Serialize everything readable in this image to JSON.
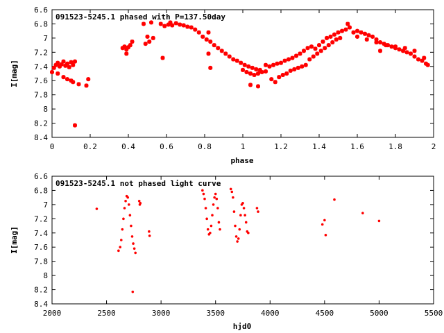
{
  "chart_data": [
    {
      "type": "scatter",
      "title": "091523-5245.1 phased with P=137.50day",
      "xlabel": "phase",
      "ylabel": "I[mag]",
      "xlim": [
        0,
        2
      ],
      "ylim": [
        6.6,
        8.4
      ],
      "y_inverted": true,
      "x_ticks": [
        "0",
        "0.2",
        "0.4",
        "0.6",
        "0.8",
        "1",
        "1.2",
        "1.4",
        "1.6",
        "1.8",
        "2"
      ],
      "y_ticks": [
        "6.6",
        "6.8",
        "7",
        "7.2",
        "7.4",
        "7.6",
        "7.8",
        "8",
        "8.2",
        "8.4"
      ],
      "marker_color": "#ff0000",
      "marker": "star",
      "series": [
        {
          "points": [
            [
              0.01,
              7.42
            ],
            [
              0.02,
              7.38
            ],
            [
              0.03,
              7.35
            ],
            [
              0.04,
              7.4
            ],
            [
              0.05,
              7.37
            ],
            [
              0.06,
              7.33
            ],
            [
              0.07,
              7.39
            ],
            [
              0.08,
              7.36
            ],
            [
              0.09,
              7.41
            ],
            [
              0.1,
              7.34
            ],
            [
              0.11,
              7.38
            ],
            [
              0.12,
              7.33
            ],
            [
              0.0,
              7.48
            ],
            [
              0.03,
              7.5
            ],
            [
              0.06,
              7.55
            ],
            [
              0.08,
              7.58
            ],
            [
              0.1,
              7.6
            ],
            [
              0.11,
              7.62
            ],
            [
              0.14,
              7.65
            ],
            [
              0.18,
              7.67
            ],
            [
              0.19,
              7.58
            ],
            [
              0.12,
              8.23
            ],
            [
              0.37,
              7.14
            ],
            [
              0.38,
              7.12
            ],
            [
              0.39,
              7.16
            ],
            [
              0.4,
              7.13
            ],
            [
              0.41,
              7.1
            ],
            [
              0.39,
              7.22
            ],
            [
              0.42,
              7.05
            ],
            [
              0.48,
              6.8
            ],
            [
              0.5,
              6.98
            ],
            [
              0.51,
              7.05
            ],
            [
              0.52,
              6.78
            ],
            [
              0.53,
              7.0
            ],
            [
              0.49,
              7.08
            ],
            [
              0.57,
              6.8
            ],
            [
              0.59,
              6.83
            ],
            [
              0.61,
              6.81
            ],
            [
              0.63,
              6.82
            ],
            [
              0.65,
              6.79
            ],
            [
              0.67,
              6.81
            ],
            [
              0.69,
              6.82
            ],
            [
              0.71,
              6.84
            ],
            [
              0.73,
              6.85
            ],
            [
              0.58,
              7.28
            ],
            [
              0.62,
              6.78
            ],
            [
              0.75,
              6.88
            ],
            [
              0.77,
              6.92
            ],
            [
              0.79,
              6.98
            ],
            [
              0.81,
              7.02
            ],
            [
              0.83,
              7.05
            ],
            [
              0.82,
              6.92
            ],
            [
              0.82,
              7.22
            ],
            [
              0.83,
              7.42
            ],
            [
              0.85,
              7.1
            ],
            [
              0.87,
              7.14
            ],
            [
              0.89,
              7.18
            ],
            [
              0.91,
              7.22
            ],
            [
              0.93,
              7.26
            ],
            [
              0.95,
              7.3
            ],
            [
              0.97,
              7.32
            ],
            [
              0.99,
              7.35
            ],
            [
              1.01,
              7.38
            ],
            [
              1.03,
              7.4
            ],
            [
              1.05,
              7.42
            ],
            [
              1.07,
              7.44
            ],
            [
              1.09,
              7.45
            ],
            [
              1.04,
              7.66
            ],
            [
              1.08,
              7.68
            ],
            [
              1.0,
              7.45
            ],
            [
              1.02,
              7.48
            ],
            [
              1.04,
              7.5
            ],
            [
              1.06,
              7.52
            ],
            [
              1.08,
              7.5
            ],
            [
              1.1,
              7.48
            ],
            [
              1.12,
              7.47
            ],
            [
              1.12,
              7.38
            ],
            [
              1.14,
              7.4
            ],
            [
              1.16,
              7.38
            ],
            [
              1.18,
              7.36
            ],
            [
              1.2,
              7.35
            ],
            [
              1.22,
              7.32
            ],
            [
              1.24,
              7.3
            ],
            [
              1.26,
              7.28
            ],
            [
              1.28,
              7.25
            ],
            [
              1.3,
              7.22
            ],
            [
              1.15,
              7.58
            ],
            [
              1.17,
              7.62
            ],
            [
              1.19,
              7.55
            ],
            [
              1.21,
              7.52
            ],
            [
              1.23,
              7.5
            ],
            [
              1.25,
              7.46
            ],
            [
              1.27,
              7.44
            ],
            [
              1.29,
              7.42
            ],
            [
              1.31,
              7.4
            ],
            [
              1.33,
              7.38
            ],
            [
              1.32,
              7.18
            ],
            [
              1.34,
              7.14
            ],
            [
              1.36,
              7.12
            ],
            [
              1.38,
              7.15
            ],
            [
              1.4,
              7.1
            ],
            [
              1.42,
              7.05
            ],
            [
              1.44,
              7.0
            ],
            [
              1.46,
              6.98
            ],
            [
              1.48,
              6.95
            ],
            [
              1.5,
              6.92
            ],
            [
              1.52,
              6.9
            ],
            [
              1.54,
              6.88
            ],
            [
              1.56,
              6.85
            ],
            [
              1.55,
              6.8
            ],
            [
              1.35,
              7.3
            ],
            [
              1.37,
              7.26
            ],
            [
              1.39,
              7.22
            ],
            [
              1.41,
              7.18
            ],
            [
              1.43,
              7.14
            ],
            [
              1.45,
              7.1
            ],
            [
              1.47,
              7.06
            ],
            [
              1.49,
              7.02
            ],
            [
              1.51,
              7.0
            ],
            [
              1.58,
              6.92
            ],
            [
              1.6,
              6.9
            ],
            [
              1.62,
              6.92
            ],
            [
              1.64,
              6.94
            ],
            [
              1.66,
              6.96
            ],
            [
              1.68,
              6.98
            ],
            [
              1.7,
              7.02
            ],
            [
              1.72,
              7.06
            ],
            [
              1.74,
              7.08
            ],
            [
              1.76,
              7.1
            ],
            [
              1.78,
              7.12
            ],
            [
              1.8,
              7.14
            ],
            [
              1.82,
              7.16
            ],
            [
              1.84,
              7.18
            ],
            [
              1.86,
              7.2
            ],
            [
              1.88,
              7.22
            ],
            [
              1.9,
              7.26
            ],
            [
              1.92,
              7.3
            ],
            [
              1.94,
              7.32
            ],
            [
              1.96,
              7.36
            ],
            [
              1.97,
              7.38
            ],
            [
              1.6,
              6.98
            ],
            [
              1.65,
              7.02
            ],
            [
              1.7,
              7.06
            ],
            [
              1.75,
              7.1
            ],
            [
              1.8,
              7.12
            ],
            [
              1.85,
              7.14
            ],
            [
              1.9,
              7.18
            ],
            [
              1.95,
              7.28
            ],
            [
              1.72,
              7.18
            ]
          ]
        }
      ],
      "grid": false,
      "legend": "none"
    },
    {
      "type": "scatter",
      "title": "091523-5245.1 not phased light curve",
      "xlabel": "hjd0",
      "ylabel": "I[mag]",
      "xlim": [
        2000,
        5500
      ],
      "ylim": [
        6.6,
        8.4
      ],
      "y_inverted": true,
      "x_ticks": [
        "2000",
        "2500",
        "3000",
        "3500",
        "4000",
        "4500",
        "5000",
        "5500"
      ],
      "y_ticks": [
        "6.6",
        "6.8",
        "7",
        "7.2",
        "7.4",
        "7.6",
        "7.8",
        "8",
        "8.2",
        "8.4"
      ],
      "marker_color": "#ff0000",
      "marker": "dot",
      "series": [
        {
          "points": [
            [
              2410,
              7.06
            ],
            [
              2610,
              7.65
            ],
            [
              2625,
              7.6
            ],
            [
              2635,
              7.5
            ],
            [
              2645,
              7.35
            ],
            [
              2655,
              7.2
            ],
            [
              2665,
              7.05
            ],
            [
              2675,
              6.95
            ],
            [
              2685,
              6.88
            ],
            [
              2695,
              6.9
            ],
            [
              2705,
              7.0
            ],
            [
              2715,
              7.15
            ],
            [
              2725,
              7.3
            ],
            [
              2735,
              7.45
            ],
            [
              2745,
              7.55
            ],
            [
              2755,
              7.62
            ],
            [
              2765,
              7.68
            ],
            [
              2740,
              8.23
            ],
            [
              2800,
              6.95
            ],
            [
              2805,
              7.0
            ],
            [
              2810,
              6.98
            ],
            [
              2890,
              7.38
            ],
            [
              2895,
              7.44
            ],
            [
              3380,
              6.8
            ],
            [
              3390,
              6.85
            ],
            [
              3400,
              6.92
            ],
            [
              3410,
              7.05
            ],
            [
              3420,
              7.2
            ],
            [
              3430,
              7.35
            ],
            [
              3440,
              7.42
            ],
            [
              3450,
              7.4
            ],
            [
              3460,
              7.3
            ],
            [
              3470,
              7.15
            ],
            [
              3480,
              7.0
            ],
            [
              3490,
              6.9
            ],
            [
              3500,
              6.85
            ],
            [
              3510,
              6.92
            ],
            [
              3520,
              7.05
            ],
            [
              3530,
              7.25
            ],
            [
              3540,
              7.35
            ],
            [
              3640,
              6.78
            ],
            [
              3650,
              6.82
            ],
            [
              3660,
              6.9
            ],
            [
              3670,
              7.1
            ],
            [
              3680,
              7.3
            ],
            [
              3690,
              7.45
            ],
            [
              3700,
              7.52
            ],
            [
              3710,
              7.48
            ],
            [
              3720,
              7.35
            ],
            [
              3730,
              7.15
            ],
            [
              3740,
              7.0
            ],
            [
              3750,
              6.98
            ],
            [
              3760,
              7.05
            ],
            [
              3770,
              7.15
            ],
            [
              3780,
              7.25
            ],
            [
              3790,
              7.38
            ],
            [
              3800,
              7.4
            ],
            [
              3880,
              7.05
            ],
            [
              3890,
              7.1
            ],
            [
              4480,
              7.28
            ],
            [
              4500,
              7.22
            ],
            [
              4510,
              7.43
            ],
            [
              4590,
              6.93
            ],
            [
              4850,
              7.12
            ],
            [
              5000,
              7.23
            ]
          ]
        }
      ],
      "grid": false,
      "legend": "none"
    }
  ]
}
